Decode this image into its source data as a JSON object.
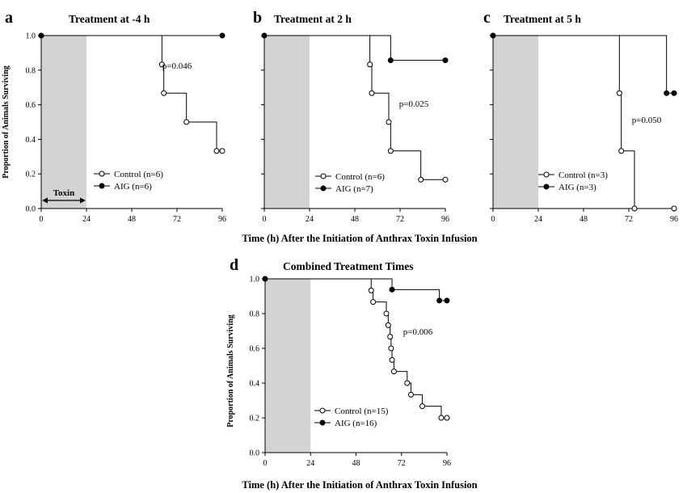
{
  "figure": {
    "xlabel_top": "Time (h) After the Initiation of Anthrax Toxin Infusion",
    "xlabel_bottom": "Time (h) After the Initiation of Anthrax Toxin Infusion"
  },
  "colors": {
    "shade": "#d3d3d3",
    "line": "#000000",
    "marker_open": "#ffffff",
    "marker_filled": "#000000"
  },
  "chart_data": [
    {
      "panel": "a",
      "title": "Treatment at -4 h",
      "type": "step",
      "ylabel": "Proportion of Animals Surviving",
      "xlim": [
        0,
        96
      ],
      "ylim": [
        0,
        1
      ],
      "xticks": [
        0,
        24,
        48,
        72,
        96
      ],
      "yticks": [
        "0.0",
        "0.2",
        "0.4",
        "0.6",
        "0.8",
        "1.0"
      ],
      "shaded": [
        0,
        24
      ],
      "toxin_label": "Toxin",
      "p_value": "p=0.046",
      "series": [
        {
          "name": "Control (n=6)",
          "marker": "open",
          "steps": [
            [
              0,
              1.0
            ],
            [
              64,
              0.833
            ],
            [
              65,
              0.667
            ],
            [
              77,
              0.5
            ],
            [
              93,
              0.333
            ]
          ],
          "points": [
            [
              64,
              0.833
            ],
            [
              65,
              0.667
            ],
            [
              77,
              0.5
            ],
            [
              93,
              0.333
            ],
            [
              96,
              0.333
            ]
          ]
        },
        {
          "name": "AIG (n=6)",
          "marker": "filled",
          "steps": [
            [
              0,
              1.0
            ]
          ],
          "points": [
            [
              0,
              1.0
            ],
            [
              96,
              1.0
            ]
          ]
        }
      ]
    },
    {
      "panel": "b",
      "title": "Treatment at 2 h",
      "type": "step",
      "xlim": [
        0,
        96
      ],
      "ylim": [
        0,
        1
      ],
      "xticks": [
        0,
        24,
        48,
        72,
        96
      ],
      "shaded": [
        0,
        24
      ],
      "p_value": "p=0.025",
      "series": [
        {
          "name": "Control (n=6)",
          "marker": "open",
          "steps": [
            [
              0,
              1.0
            ],
            [
              56,
              0.833
            ],
            [
              57,
              0.667
            ],
            [
              66,
              0.5
            ],
            [
              67,
              0.333
            ],
            [
              83,
              0.167
            ]
          ],
          "points": [
            [
              56,
              0.833
            ],
            [
              57,
              0.667
            ],
            [
              66,
              0.5
            ],
            [
              67,
              0.333
            ],
            [
              83,
              0.167
            ],
            [
              96,
              0.167
            ]
          ]
        },
        {
          "name": "AIG (n=7)",
          "marker": "filled",
          "steps": [
            [
              0,
              1.0
            ],
            [
              67,
              0.857
            ]
          ],
          "points": [
            [
              0,
              1.0
            ],
            [
              67,
              0.857
            ],
            [
              96,
              0.857
            ]
          ]
        }
      ]
    },
    {
      "panel": "c",
      "title": "Treatment at 5 h",
      "type": "step",
      "xlim": [
        0,
        96
      ],
      "ylim": [
        0,
        1
      ],
      "xticks": [
        0,
        24,
        48,
        72,
        96
      ],
      "shaded": [
        0,
        24
      ],
      "p_value": "p=0.050",
      "series": [
        {
          "name": "Control (n=3)",
          "marker": "open",
          "steps": [
            [
              0,
              1.0
            ],
            [
              67,
              0.667
            ],
            [
              68,
              0.333
            ],
            [
              75,
              0.0
            ]
          ],
          "points": [
            [
              67,
              0.667
            ],
            [
              68,
              0.333
            ],
            [
              75,
              0.0
            ],
            [
              96,
              0.0
            ]
          ]
        },
        {
          "name": "AIG (n=3)",
          "marker": "filled",
          "steps": [
            [
              0,
              1.0
            ],
            [
              92,
              0.667
            ]
          ],
          "points": [
            [
              0,
              1.0
            ],
            [
              92,
              0.667
            ],
            [
              96,
              0.667
            ]
          ]
        }
      ]
    },
    {
      "panel": "d",
      "title": "Combined Treatment Times",
      "type": "step",
      "ylabel": "Proportion of Animals Surviving",
      "xlim": [
        0,
        96
      ],
      "ylim": [
        0,
        1
      ],
      "xticks": [
        0,
        24,
        48,
        72,
        96
      ],
      "yticks": [
        "0.0",
        "0.2",
        "0.4",
        "0.6",
        "0.8",
        "1.0"
      ],
      "shaded": [
        0,
        24
      ],
      "p_value": "p=0.006",
      "series": [
        {
          "name": "Control (n=15)",
          "marker": "open",
          "steps": [
            [
              0,
              1.0
            ],
            [
              56,
              0.933
            ],
            [
              57,
              0.867
            ],
            [
              64,
              0.8
            ],
            [
              65,
              0.733
            ],
            [
              66,
              0.667
            ],
            [
              66.5,
              0.6
            ],
            [
              67,
              0.533
            ],
            [
              68,
              0.467
            ],
            [
              75,
              0.4
            ],
            [
              77,
              0.333
            ],
            [
              83,
              0.267
            ],
            [
              93,
              0.2
            ]
          ],
          "points": [
            [
              56,
              0.933
            ],
            [
              57,
              0.867
            ],
            [
              64,
              0.8
            ],
            [
              65,
              0.733
            ],
            [
              66,
              0.667
            ],
            [
              66.5,
              0.6
            ],
            [
              67,
              0.533
            ],
            [
              68,
              0.467
            ],
            [
              75,
              0.4
            ],
            [
              77,
              0.333
            ],
            [
              83,
              0.267
            ],
            [
              93,
              0.2
            ],
            [
              96,
              0.2
            ]
          ]
        },
        {
          "name": "AIG (n=16)",
          "marker": "filled",
          "steps": [
            [
              0,
              1.0
            ],
            [
              67,
              0.938
            ],
            [
              92,
              0.875
            ]
          ],
          "points": [
            [
              0,
              1.0
            ],
            [
              67,
              0.938
            ],
            [
              92,
              0.875
            ],
            [
              96,
              0.875
            ]
          ]
        }
      ]
    }
  ]
}
